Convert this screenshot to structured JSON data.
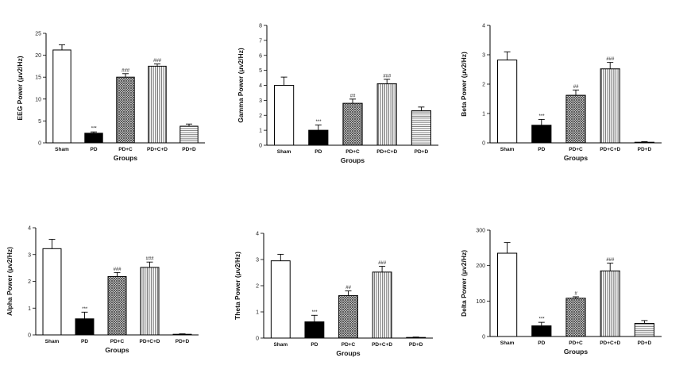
{
  "chart_data": [
    {
      "type": "bar",
      "ylabel": "EEG Power  (μv2/Hz)",
      "xlabel": "Groups",
      "categories": [
        "Sham",
        "PD",
        "PD+C",
        "PD+C+D",
        "PD+D"
      ],
      "values": [
        21.2,
        2.2,
        15.0,
        17.5,
        3.8
      ],
      "errors": [
        1.2,
        0.3,
        0.8,
        0.5,
        0.5
      ],
      "significance": [
        "",
        "***",
        "###",
        "###",
        ""
      ],
      "ylim": [
        0,
        25
      ],
      "yticks": [
        0,
        5,
        10,
        15,
        20,
        25
      ]
    },
    {
      "type": "bar",
      "ylabel": "Gamma Power  (μv2/Hz)",
      "xlabel": "Groups",
      "categories": [
        "Sham",
        "PD",
        "PD+C",
        "PD+C+D",
        "PD+D"
      ],
      "values": [
        4.0,
        1.0,
        2.8,
        4.1,
        2.3
      ],
      "errors": [
        0.55,
        0.35,
        0.28,
        0.3,
        0.25
      ],
      "significance": [
        "",
        "***",
        "##",
        "###",
        ""
      ],
      "ylim": [
        0,
        8
      ],
      "yticks": [
        0,
        1,
        2,
        3,
        4,
        5,
        6,
        7,
        8
      ]
    },
    {
      "type": "bar",
      "ylabel": "Beta Power  (μv2/Hz)",
      "xlabel": "Groups",
      "categories": [
        "Sham",
        "PD",
        "PD+C",
        "PD+C+D",
        "PD+D"
      ],
      "values": [
        2.82,
        0.6,
        1.62,
        2.52,
        0.02
      ],
      "errors": [
        0.28,
        0.2,
        0.18,
        0.22,
        0.02
      ],
      "significance": [
        "",
        "***",
        "##",
        "###",
        ""
      ],
      "ylim": [
        0,
        4
      ],
      "yticks": [
        0,
        1,
        2,
        3,
        4
      ]
    },
    {
      "type": "bar",
      "ylabel": "Alpha Power  (μv2/Hz)",
      "xlabel": "Groups",
      "categories": [
        "Sham",
        "PD",
        "PD+C",
        "PD+C+D",
        "PD+D"
      ],
      "values": [
        3.22,
        0.6,
        2.18,
        2.52,
        0.02
      ],
      "errors": [
        0.35,
        0.25,
        0.15,
        0.2,
        0.02
      ],
      "significance": [
        "",
        "***",
        "###",
        "###",
        ""
      ],
      "ylim": [
        0,
        4
      ],
      "yticks": [
        0,
        1,
        2,
        3,
        4
      ]
    },
    {
      "type": "bar",
      "ylabel": "Theta Power  (μv2/Hz)",
      "xlabel": "Groups",
      "categories": [
        "Sham",
        "PD",
        "PD+C",
        "PD+C+D",
        "PD+D"
      ],
      "values": [
        2.95,
        0.62,
        1.62,
        2.52,
        0.02
      ],
      "errors": [
        0.25,
        0.25,
        0.18,
        0.22,
        0.02
      ],
      "significance": [
        "",
        "***",
        "##",
        "###",
        ""
      ],
      "ylim": [
        0,
        4
      ],
      "yticks": [
        0,
        1,
        2,
        3,
        4
      ]
    },
    {
      "type": "bar",
      "ylabel": "Delta Power  (μv2/Hz)",
      "xlabel": "Groups",
      "categories": [
        "Sham",
        "PD",
        "PD+C",
        "PD+C+D",
        "PD+D"
      ],
      "values": [
        235,
        30,
        108,
        185,
        37
      ],
      "errors": [
        30,
        10,
        4,
        22,
        8
      ],
      "significance": [
        "",
        "***",
        "#",
        "###",
        ""
      ],
      "ylim": [
        0,
        300
      ],
      "yticks": [
        0,
        100,
        200,
        300
      ]
    }
  ],
  "bar_styles": {
    "fills": [
      "white",
      "solid-black",
      "crosshatch",
      "vertical-stripes",
      "horizontal-stripes"
    ],
    "stroke_color": "#000000",
    "hatch_color": "#444444"
  }
}
